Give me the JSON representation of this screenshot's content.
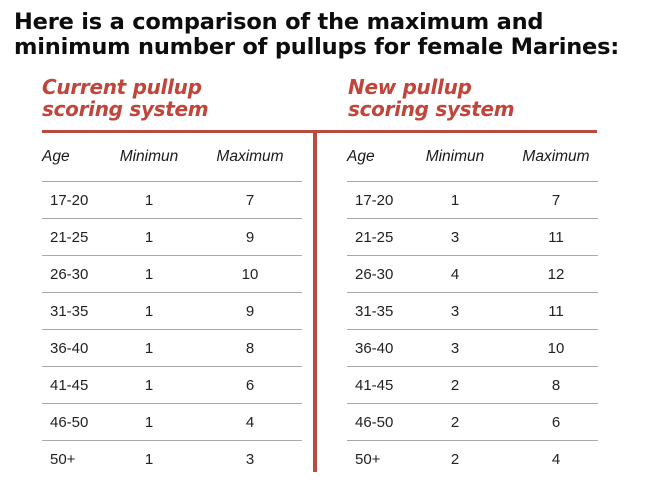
{
  "title": "Here is a comparison of the maximum and\nminimum number of pullups for female Marines:",
  "current": {
    "heading": "Current pullup\nscoring system",
    "columns": [
      "Age",
      "Minimun",
      "Maximum"
    ],
    "rows": [
      [
        "17-20",
        "1",
        "7"
      ],
      [
        "21-25",
        "1",
        "9"
      ],
      [
        "26-30",
        "1",
        "10"
      ],
      [
        "31-35",
        "1",
        "9"
      ],
      [
        "36-40",
        "1",
        "8"
      ],
      [
        "41-45",
        "1",
        "6"
      ],
      [
        "46-50",
        "1",
        "4"
      ],
      [
        "50+",
        "1",
        "3"
      ]
    ]
  },
  "new": {
    "heading": "New pullup\nscoring system",
    "columns": [
      "Age",
      "Minimun",
      "Maximum"
    ],
    "rows": [
      [
        "17-20",
        "1",
        "7"
      ],
      [
        "21-25",
        "3",
        "11"
      ],
      [
        "26-30",
        "4",
        "12"
      ],
      [
        "31-35",
        "3",
        "11"
      ],
      [
        "36-40",
        "3",
        "10"
      ],
      [
        "41-45",
        "2",
        "8"
      ],
      [
        "46-50",
        "2",
        "6"
      ],
      [
        "50+",
        "2",
        "4"
      ]
    ]
  },
  "colors": {
    "accent": "#c0453b",
    "rule": "#b84a3f",
    "row_line": "#a8a8a8"
  }
}
